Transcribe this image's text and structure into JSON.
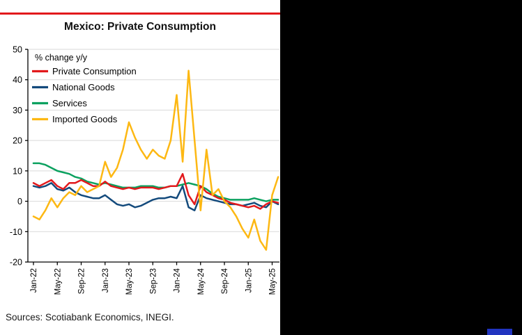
{
  "panel": {
    "sources": "Sources: Scotiabank Economics, INEGI."
  },
  "colors": {
    "accent_red": "#e2191c",
    "accent_blue_chip": "#2134bf",
    "axis": "#000000",
    "grid": "#d9d9d9",
    "series_private_consumption": "#e2191c",
    "series_national_goods": "#134a7c",
    "series_services": "#0ba15f",
    "series_imported_goods": "#fdb813"
  },
  "chart_data": {
    "type": "line",
    "title": "Mexico: Private Consumption",
    "unit_note": "% change y/y",
    "ylabel": "% change y/y",
    "xlabel": "",
    "ylim": [
      -20,
      50
    ],
    "ytick_step": 10,
    "grid": "horizontal",
    "legend_position": "top-left",
    "x": [
      "Jan-22",
      "Feb-22",
      "Mar-22",
      "Apr-22",
      "May-22",
      "Jun-22",
      "Jul-22",
      "Aug-22",
      "Sep-22",
      "Oct-22",
      "Nov-22",
      "Dec-22",
      "Jan-23",
      "Feb-23",
      "Mar-23",
      "Apr-23",
      "May-23",
      "Jun-23",
      "Jul-23",
      "Aug-23",
      "Sep-23",
      "Oct-23",
      "Nov-23",
      "Dec-23",
      "Jan-24",
      "Feb-24",
      "Mar-24",
      "Apr-24",
      "May-24",
      "Jun-24",
      "Jul-24",
      "Aug-24",
      "Sep-24",
      "Oct-24",
      "Nov-24",
      "Dec-24",
      "Jan-25",
      "Feb-25",
      "Mar-25",
      "Apr-25",
      "May-25",
      "Jun-25"
    ],
    "x_tick_labels": [
      "Jan-22",
      "May-22",
      "Sep-22",
      "Jan-23",
      "May-23",
      "Sep-23",
      "Jan-24",
      "May-24",
      "Sep-24",
      "Jan-25",
      "May-25"
    ],
    "series": [
      {
        "name": "Private Consumption",
        "color": "#e2191c",
        "z": 3,
        "values": [
          6,
          5,
          6,
          7,
          5,
          4,
          6,
          6,
          7,
          6,
          5,
          5,
          6.5,
          5,
          4.5,
          4,
          4.5,
          4,
          4.5,
          4.5,
          4.5,
          4,
          4.5,
          5,
          5,
          9,
          2,
          -1,
          5,
          3,
          2,
          1,
          0.5,
          -0.5,
          -1,
          -1.5,
          -2,
          -1.5,
          -2.5,
          -1,
          0,
          -0.5
        ]
      },
      {
        "name": "National Goods",
        "color": "#134a7c",
        "z": 1,
        "values": [
          5,
          4.5,
          5,
          6,
          4,
          3.5,
          4.5,
          3,
          2,
          1.5,
          1,
          1,
          2,
          0.5,
          -1,
          -1.5,
          -1,
          -2,
          -1.5,
          -0.5,
          0.5,
          1,
          1,
          1.5,
          1,
          5,
          -2,
          -3,
          2,
          1,
          0.5,
          0,
          -0.5,
          -1,
          -1,
          -1.5,
          -1,
          -0.5,
          -1.5,
          -2,
          0,
          -1
        ]
      },
      {
        "name": "Services",
        "color": "#0ba15f",
        "z": 2,
        "values": [
          12.5,
          12.5,
          12,
          11,
          10,
          9.5,
          9,
          8,
          7.5,
          6.5,
          6,
          5.5,
          6,
          5.5,
          5,
          4.5,
          4.5,
          4.5,
          5,
          5,
          5,
          4.5,
          4.5,
          5,
          5,
          5.5,
          6,
          5.5,
          5,
          4,
          2.5,
          1.5,
          1,
          0.5,
          0.5,
          0.5,
          0.5,
          1,
          0.5,
          0,
          0.5,
          0.5
        ]
      },
      {
        "name": "Imported Goods",
        "color": "#fdb813",
        "z": 4,
        "values": [
          -5,
          -6,
          -3,
          1,
          -2,
          1,
          3,
          2,
          5,
          3,
          4,
          5,
          13,
          8,
          11,
          17,
          26,
          21,
          17,
          14,
          17,
          15,
          14,
          20,
          35,
          13,
          43,
          20,
          -3,
          17,
          2,
          4,
          0,
          -2,
          -5,
          -9,
          -12,
          -6,
          -13,
          -16,
          2,
          8
        ]
      }
    ]
  }
}
